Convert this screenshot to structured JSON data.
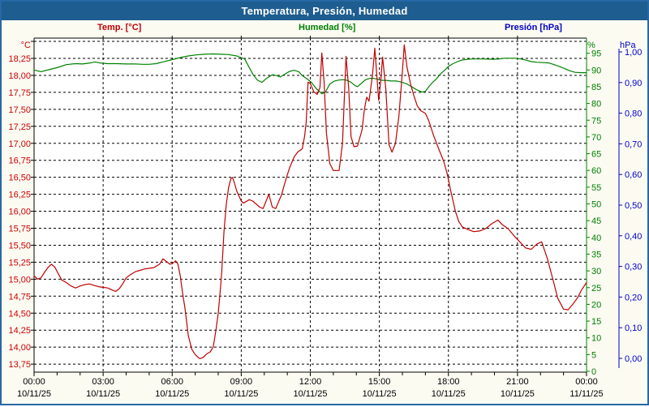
{
  "window": {
    "title": "Temperatura, Presión, Humedad"
  },
  "colors": {
    "titlebar_bg": "#1E5D8F",
    "frame_border": "#2768A6",
    "page_bg": "#FBFBF2",
    "plot_bg": "#FFFFFF",
    "grid": "#000000",
    "temp": "#C00000",
    "humidity": "#008000",
    "pressure": "#0000C8",
    "x_labels": "#000000"
  },
  "legend": [
    {
      "label": "Temp. [°C]",
      "color": "#C00000"
    },
    {
      "label": "Humedad [%]",
      "color": "#008000"
    },
    {
      "label": "Presión [hPa]",
      "color": "#0000C8"
    }
  ],
  "chart_data": {
    "type": "line",
    "title": "Temperatura, Presión, Humedad",
    "grid": true,
    "x_axis": {
      "unit": "time",
      "hours_span": 24,
      "gridline_every_hours": 3,
      "minor_tick_every_hours": 1,
      "ticks": [
        {
          "time": "00:00",
          "date": "10/11/25"
        },
        {
          "time": "03:00",
          "date": "10/11/25"
        },
        {
          "time": "06:00",
          "date": "10/11/25"
        },
        {
          "time": "09:00",
          "date": "10/11/25"
        },
        {
          "time": "12:00",
          "date": "10/11/25"
        },
        {
          "time": "15:00",
          "date": "10/11/25"
        },
        {
          "time": "18:00",
          "date": "10/11/25"
        },
        {
          "time": "21:00",
          "date": "10/11/25"
        },
        {
          "time": "00:00",
          "date": "11/11/25"
        }
      ]
    },
    "y_axes": {
      "temperature": {
        "unit": "°C",
        "side": "left",
        "color": "#CC0000",
        "tick_step": 0.25,
        "top_label": 18.25,
        "bottom_label": 13.75,
        "unlabeled_top_gridline": 18.5,
        "tick_labels": [
          "18,25",
          "18,00",
          "17,75",
          "17,50",
          "17,25",
          "17,00",
          "16,75",
          "16,50",
          "16,25",
          "16,00",
          "15,75",
          "15,50",
          "15,25",
          "15,00",
          "14,75",
          "14,50",
          "14,25",
          "14,00",
          "13,75"
        ]
      },
      "humidity": {
        "unit": "%",
        "side": "right",
        "color": "#008000",
        "min": 0,
        "max": 95,
        "tick_step": 5,
        "tick_labels": [
          "95",
          "90",
          "85",
          "80",
          "75",
          "70",
          "65",
          "60",
          "55",
          "50",
          "45",
          "40",
          "35",
          "30",
          "25",
          "20",
          "15",
          "10",
          "5",
          "0"
        ]
      },
      "pressure": {
        "unit": "hPa",
        "side": "right-outer",
        "color": "#0000C8",
        "min": 0.0,
        "max": 1.0,
        "tick_step": 0.1,
        "tick_labels": [
          "1,00",
          "0,90",
          "0,80",
          "0,70",
          "0,60",
          "0,50",
          "0,40",
          "0,30",
          "0,20",
          "0,10",
          "0,00"
        ]
      }
    },
    "series": [
      {
        "name": "Temp. [°C]",
        "unit": "°C",
        "axis": "temperature",
        "color": "#C00000",
        "points": [
          [
            0,
            15.05
          ],
          [
            0.15,
            15.0
          ],
          [
            0.3,
            15.02
          ],
          [
            0.45,
            15.1
          ],
          [
            0.6,
            15.17
          ],
          [
            0.75,
            15.22
          ],
          [
            0.9,
            15.18
          ],
          [
            1.05,
            15.08
          ],
          [
            1.2,
            14.99
          ],
          [
            1.4,
            14.95
          ],
          [
            1.6,
            14.9
          ],
          [
            1.8,
            14.87
          ],
          [
            2.0,
            14.9
          ],
          [
            2.2,
            14.92
          ],
          [
            2.4,
            14.93
          ],
          [
            2.6,
            14.91
          ],
          [
            2.8,
            14.89
          ],
          [
            3.0,
            14.88
          ],
          [
            3.2,
            14.87
          ],
          [
            3.4,
            14.84
          ],
          [
            3.55,
            14.82
          ],
          [
            3.7,
            14.86
          ],
          [
            3.85,
            14.93
          ],
          [
            4.0,
            15.02
          ],
          [
            4.2,
            15.07
          ],
          [
            4.4,
            15.11
          ],
          [
            4.6,
            15.13
          ],
          [
            4.8,
            15.15
          ],
          [
            5.0,
            15.16
          ],
          [
            5.2,
            15.17
          ],
          [
            5.45,
            15.22
          ],
          [
            5.6,
            15.3
          ],
          [
            5.75,
            15.26
          ],
          [
            5.9,
            15.22
          ],
          [
            6.05,
            15.24
          ],
          [
            6.15,
            15.27
          ],
          [
            6.25,
            15.22
          ],
          [
            6.35,
            15.05
          ],
          [
            6.45,
            14.8
          ],
          [
            6.55,
            14.58
          ],
          [
            6.7,
            14.17
          ],
          [
            6.85,
            13.97
          ],
          [
            7.0,
            13.89
          ],
          [
            7.2,
            13.83
          ],
          [
            7.35,
            13.85
          ],
          [
            7.5,
            13.9
          ],
          [
            7.65,
            13.93
          ],
          [
            7.78,
            14.0
          ],
          [
            7.9,
            14.25
          ],
          [
            8.0,
            14.5
          ],
          [
            8.08,
            14.8
          ],
          [
            8.15,
            15.1
          ],
          [
            8.25,
            15.7
          ],
          [
            8.35,
            16.1
          ],
          [
            8.45,
            16.35
          ],
          [
            8.55,
            16.48
          ],
          [
            8.62,
            16.5
          ],
          [
            8.7,
            16.42
          ],
          [
            8.8,
            16.3
          ],
          [
            9.0,
            16.15
          ],
          [
            9.1,
            16.12
          ],
          [
            9.35,
            16.17
          ],
          [
            9.5,
            16.15
          ],
          [
            9.8,
            16.06
          ],
          [
            9.95,
            16.04
          ],
          [
            10.2,
            16.25
          ],
          [
            10.35,
            16.06
          ],
          [
            10.5,
            16.04
          ],
          [
            10.75,
            16.24
          ],
          [
            10.95,
            16.48
          ],
          [
            11.1,
            16.64
          ],
          [
            11.3,
            16.8
          ],
          [
            11.45,
            16.87
          ],
          [
            11.65,
            16.92
          ],
          [
            11.75,
            17.1
          ],
          [
            11.82,
            17.3
          ],
          [
            11.9,
            17.9
          ],
          [
            12.0,
            17.88
          ],
          [
            12.15,
            17.76
          ],
          [
            12.3,
            17.72
          ],
          [
            12.42,
            17.82
          ],
          [
            12.5,
            18.33
          ],
          [
            12.6,
            17.9
          ],
          [
            12.7,
            17.15
          ],
          [
            12.85,
            16.7
          ],
          [
            13.0,
            16.6
          ],
          [
            13.25,
            16.6
          ],
          [
            13.4,
            17.0
          ],
          [
            13.55,
            18.28
          ],
          [
            13.67,
            17.8
          ],
          [
            13.77,
            17.1
          ],
          [
            13.9,
            16.95
          ],
          [
            14.05,
            16.96
          ],
          [
            14.25,
            17.2
          ],
          [
            14.35,
            17.5
          ],
          [
            14.45,
            17.68
          ],
          [
            14.55,
            17.62
          ],
          [
            14.7,
            18.0
          ],
          [
            14.8,
            18.4
          ],
          [
            14.88,
            18.05
          ],
          [
            14.97,
            17.63
          ],
          [
            15.07,
            17.95
          ],
          [
            15.14,
            18.27
          ],
          [
            15.28,
            17.8
          ],
          [
            15.42,
            16.98
          ],
          [
            15.55,
            16.87
          ],
          [
            15.7,
            17.0
          ],
          [
            15.85,
            17.4
          ],
          [
            16.0,
            18.05
          ],
          [
            16.08,
            18.45
          ],
          [
            16.2,
            18.12
          ],
          [
            16.35,
            17.88
          ],
          [
            16.5,
            17.7
          ],
          [
            16.65,
            17.55
          ],
          [
            16.8,
            17.48
          ],
          [
            17.0,
            17.44
          ],
          [
            17.15,
            17.33
          ],
          [
            17.35,
            17.12
          ],
          [
            17.6,
            16.9
          ],
          [
            17.8,
            16.73
          ],
          [
            17.95,
            16.55
          ],
          [
            18.1,
            16.3
          ],
          [
            18.3,
            16.0
          ],
          [
            18.45,
            15.85
          ],
          [
            18.6,
            15.77
          ],
          [
            18.85,
            15.73
          ],
          [
            19.1,
            15.7
          ],
          [
            19.35,
            15.71
          ],
          [
            19.6,
            15.74
          ],
          [
            19.9,
            15.82
          ],
          [
            20.15,
            15.87
          ],
          [
            20.35,
            15.8
          ],
          [
            20.6,
            15.74
          ],
          [
            20.85,
            15.64
          ],
          [
            21.1,
            15.55
          ],
          [
            21.35,
            15.46
          ],
          [
            21.6,
            15.44
          ],
          [
            21.85,
            15.52
          ],
          [
            22.05,
            15.55
          ],
          [
            22.3,
            15.3
          ],
          [
            22.55,
            14.98
          ],
          [
            22.75,
            14.72
          ],
          [
            23.0,
            14.56
          ],
          [
            23.2,
            14.55
          ],
          [
            23.4,
            14.63
          ],
          [
            23.6,
            14.72
          ],
          [
            23.8,
            14.85
          ],
          [
            24,
            14.95
          ]
        ]
      },
      {
        "name": "Humedad [%]",
        "unit": "%",
        "axis": "humidity",
        "color": "#008000",
        "points": [
          [
            0,
            90
          ],
          [
            0.3,
            89.5
          ],
          [
            0.7,
            90.2
          ],
          [
            1.05,
            90.8
          ],
          [
            1.4,
            91.6
          ],
          [
            1.8,
            91.9
          ],
          [
            2.1,
            91.8
          ],
          [
            2.45,
            92.1
          ],
          [
            2.65,
            92.4
          ],
          [
            2.85,
            92.1
          ],
          [
            3.2,
            91.9
          ],
          [
            3.6,
            91.9
          ],
          [
            4.0,
            91.8
          ],
          [
            4.4,
            91.8
          ],
          [
            4.7,
            91.7
          ],
          [
            5.0,
            91.7
          ],
          [
            5.3,
            91.9
          ],
          [
            5.6,
            92.4
          ],
          [
            6.0,
            93.1
          ],
          [
            6.35,
            93.7
          ],
          [
            6.7,
            94.2
          ],
          [
            7.05,
            94.5
          ],
          [
            7.4,
            94.7
          ],
          [
            7.75,
            94.8
          ],
          [
            8.1,
            94.7
          ],
          [
            8.45,
            94.6
          ],
          [
            8.8,
            94.2
          ],
          [
            9.15,
            93.3
          ],
          [
            9.5,
            88.8
          ],
          [
            9.7,
            87
          ],
          [
            9.9,
            86.3
          ],
          [
            10.1,
            87.5
          ],
          [
            10.35,
            88.6
          ],
          [
            10.55,
            88.3
          ],
          [
            10.7,
            87.9
          ],
          [
            10.9,
            88.8
          ],
          [
            11.1,
            89.6
          ],
          [
            11.3,
            89.9
          ],
          [
            11.5,
            89.5
          ],
          [
            11.65,
            88.3
          ],
          [
            11.85,
            87.4
          ],
          [
            12.05,
            86.3
          ],
          [
            12.25,
            84.5
          ],
          [
            12.5,
            82.9
          ],
          [
            12.65,
            83.3
          ],
          [
            12.85,
            85.8
          ],
          [
            13.05,
            86.7
          ],
          [
            13.25,
            87
          ],
          [
            13.45,
            87.1
          ],
          [
            13.6,
            86.9
          ],
          [
            13.75,
            86.4
          ],
          [
            13.95,
            85.3
          ],
          [
            14.05,
            85
          ],
          [
            14.25,
            86.2
          ],
          [
            14.4,
            87.1
          ],
          [
            14.6,
            87.5
          ],
          [
            14.75,
            87.5
          ],
          [
            14.95,
            87.2
          ],
          [
            15.1,
            86.9
          ],
          [
            15.3,
            86.9
          ],
          [
            15.5,
            86.7
          ],
          [
            15.75,
            86.7
          ],
          [
            15.95,
            86.4
          ],
          [
            16.2,
            85.8
          ],
          [
            16.45,
            84.8
          ],
          [
            16.65,
            84.0
          ],
          [
            16.85,
            83.4
          ],
          [
            17.0,
            83.6
          ],
          [
            17.15,
            85
          ],
          [
            17.3,
            86.2
          ],
          [
            17.5,
            87.5
          ],
          [
            17.65,
            88.8
          ],
          [
            17.85,
            90
          ],
          [
            18.0,
            91.1
          ],
          [
            18.2,
            91.9
          ],
          [
            18.4,
            92.5
          ],
          [
            18.55,
            92.9
          ],
          [
            18.8,
            93.2
          ],
          [
            19.05,
            93.3
          ],
          [
            19.5,
            93.3
          ],
          [
            19.95,
            93.2
          ],
          [
            20.2,
            93.3
          ],
          [
            20.45,
            93.5
          ],
          [
            20.9,
            93.5
          ],
          [
            21.15,
            93.3
          ],
          [
            21.4,
            92.9
          ],
          [
            21.6,
            92.5
          ],
          [
            21.85,
            92.3
          ],
          [
            22.1,
            92.2
          ],
          [
            22.35,
            92.1
          ],
          [
            22.55,
            91.7
          ],
          [
            22.8,
            91.1
          ],
          [
            23.05,
            90.4
          ],
          [
            23.25,
            89.8
          ],
          [
            23.5,
            89.3
          ],
          [
            23.75,
            89.2
          ],
          [
            24,
            89.2
          ]
        ]
      },
      {
        "name": "Presión [hPa]",
        "unit": "hPa",
        "axis": "pressure",
        "color": "#0000C8",
        "points": []
      }
    ]
  }
}
